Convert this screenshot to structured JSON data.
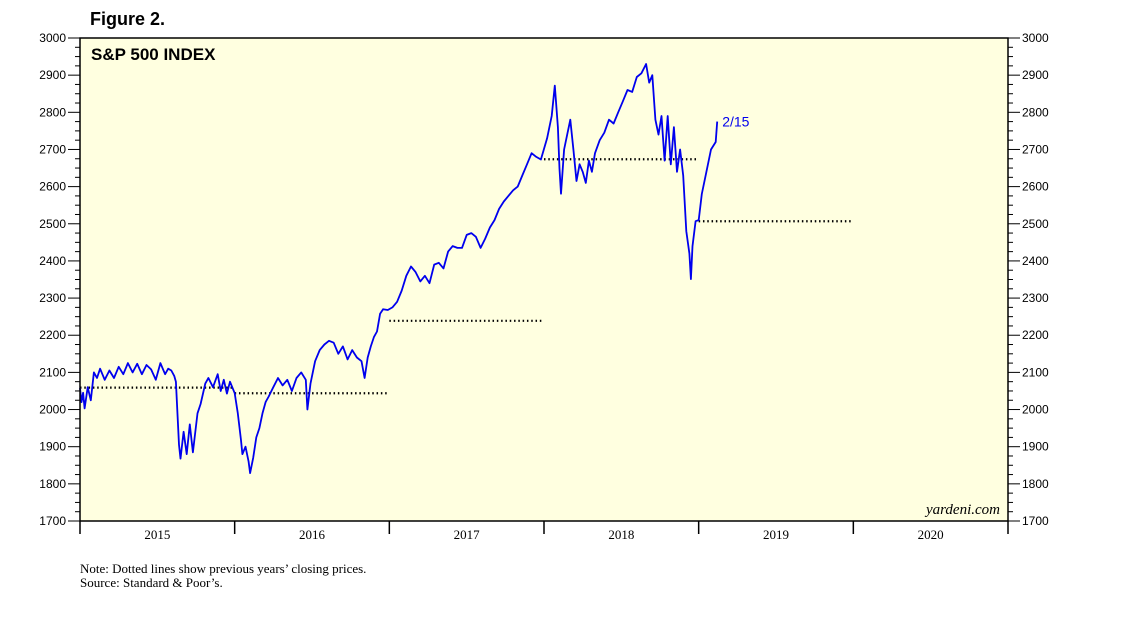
{
  "figure_title": "Figure 2.",
  "chart_data": {
    "type": "line",
    "title": "S&P 500 INDEX",
    "watermark": "yardeni.com",
    "end_label": "2/15",
    "ylim": [
      1700,
      3000
    ],
    "y_ticks": [
      1700,
      1800,
      1900,
      2000,
      2100,
      2200,
      2300,
      2400,
      2500,
      2600,
      2700,
      2800,
      2900,
      3000
    ],
    "xlim": [
      2015.0,
      2021.0
    ],
    "x_categories": [
      "2015",
      "2016",
      "2017",
      "2018",
      "2019",
      "2020"
    ],
    "colors": {
      "background": "#ffffe0",
      "line": "#0000ee",
      "reference": "#000000"
    },
    "series": [
      {
        "values": [
          [
            2015.0,
            2058
          ],
          [
            2015.01,
            2020
          ],
          [
            2015.02,
            2045
          ],
          [
            2015.03,
            2003
          ],
          [
            2015.05,
            2060
          ],
          [
            2015.07,
            2025
          ],
          [
            2015.09,
            2100
          ],
          [
            2015.11,
            2085
          ],
          [
            2015.13,
            2110
          ],
          [
            2015.16,
            2080
          ],
          [
            2015.19,
            2105
          ],
          [
            2015.22,
            2085
          ],
          [
            2015.25,
            2115
          ],
          [
            2015.28,
            2095
          ],
          [
            2015.31,
            2125
          ],
          [
            2015.34,
            2100
          ],
          [
            2015.37,
            2123
          ],
          [
            2015.4,
            2095
          ],
          [
            2015.43,
            2120
          ],
          [
            2015.46,
            2108
          ],
          [
            2015.49,
            2080
          ],
          [
            2015.52,
            2125
          ],
          [
            2015.55,
            2095
          ],
          [
            2015.57,
            2110
          ],
          [
            2015.59,
            2105
          ],
          [
            2015.61,
            2090
          ],
          [
            2015.62,
            2075
          ],
          [
            2015.64,
            1905
          ],
          [
            2015.65,
            1868
          ],
          [
            2015.67,
            1940
          ],
          [
            2015.69,
            1880
          ],
          [
            2015.71,
            1960
          ],
          [
            2015.73,
            1885
          ],
          [
            2015.76,
            1990
          ],
          [
            2015.78,
            2015
          ],
          [
            2015.81,
            2070
          ],
          [
            2015.83,
            2085
          ],
          [
            2015.86,
            2060
          ],
          [
            2015.89,
            2095
          ],
          [
            2015.91,
            2050
          ],
          [
            2015.93,
            2080
          ],
          [
            2015.95,
            2043
          ],
          [
            2015.97,
            2075
          ],
          [
            2016.0,
            2044
          ],
          [
            2016.02,
            1990
          ],
          [
            2016.04,
            1920
          ],
          [
            2016.05,
            1880
          ],
          [
            2016.07,
            1900
          ],
          [
            2016.09,
            1860
          ],
          [
            2016.1,
            1829
          ],
          [
            2016.12,
            1870
          ],
          [
            2016.14,
            1925
          ],
          [
            2016.16,
            1950
          ],
          [
            2016.18,
            1990
          ],
          [
            2016.2,
            2020
          ],
          [
            2016.22,
            2035
          ],
          [
            2016.25,
            2060
          ],
          [
            2016.28,
            2085
          ],
          [
            2016.31,
            2065
          ],
          [
            2016.34,
            2080
          ],
          [
            2016.37,
            2050
          ],
          [
            2016.4,
            2085
          ],
          [
            2016.43,
            2100
          ],
          [
            2016.46,
            2080
          ],
          [
            2016.47,
            2000
          ],
          [
            2016.49,
            2070
          ],
          [
            2016.52,
            2130
          ],
          [
            2016.55,
            2160
          ],
          [
            2016.58,
            2175
          ],
          [
            2016.61,
            2185
          ],
          [
            2016.64,
            2180
          ],
          [
            2016.67,
            2150
          ],
          [
            2016.7,
            2170
          ],
          [
            2016.73,
            2135
          ],
          [
            2016.76,
            2160
          ],
          [
            2016.79,
            2140
          ],
          [
            2016.82,
            2130
          ],
          [
            2016.84,
            2085
          ],
          [
            2016.86,
            2140
          ],
          [
            2016.88,
            2170
          ],
          [
            2016.9,
            2195
          ],
          [
            2016.92,
            2210
          ],
          [
            2016.94,
            2258
          ],
          [
            2016.96,
            2270
          ],
          [
            2016.99,
            2268
          ],
          [
            2017.02,
            2275
          ],
          [
            2017.05,
            2290
          ],
          [
            2017.08,
            2320
          ],
          [
            2017.11,
            2360
          ],
          [
            2017.14,
            2385
          ],
          [
            2017.17,
            2370
          ],
          [
            2017.2,
            2345
          ],
          [
            2017.23,
            2360
          ],
          [
            2017.26,
            2340
          ],
          [
            2017.29,
            2390
          ],
          [
            2017.32,
            2395
          ],
          [
            2017.35,
            2380
          ],
          [
            2017.38,
            2425
          ],
          [
            2017.41,
            2440
          ],
          [
            2017.44,
            2435
          ],
          [
            2017.47,
            2435
          ],
          [
            2017.5,
            2470
          ],
          [
            2017.53,
            2475
          ],
          [
            2017.56,
            2465
          ],
          [
            2017.59,
            2435
          ],
          [
            2017.62,
            2460
          ],
          [
            2017.65,
            2490
          ],
          [
            2017.68,
            2510
          ],
          [
            2017.71,
            2540
          ],
          [
            2017.74,
            2560
          ],
          [
            2017.77,
            2575
          ],
          [
            2017.8,
            2590
          ],
          [
            2017.83,
            2600
          ],
          [
            2017.86,
            2630
          ],
          [
            2017.89,
            2660
          ],
          [
            2017.92,
            2690
          ],
          [
            2017.95,
            2680
          ],
          [
            2017.98,
            2673
          ],
          [
            2018.02,
            2730
          ],
          [
            2018.05,
            2790
          ],
          [
            2018.07,
            2872
          ],
          [
            2018.09,
            2760
          ],
          [
            2018.1,
            2648
          ],
          [
            2018.11,
            2581
          ],
          [
            2018.13,
            2700
          ],
          [
            2018.15,
            2740
          ],
          [
            2018.17,
            2780
          ],
          [
            2018.19,
            2700
          ],
          [
            2018.21,
            2615
          ],
          [
            2018.23,
            2660
          ],
          [
            2018.25,
            2640
          ],
          [
            2018.27,
            2610
          ],
          [
            2018.29,
            2670
          ],
          [
            2018.31,
            2640
          ],
          [
            2018.33,
            2690
          ],
          [
            2018.36,
            2725
          ],
          [
            2018.39,
            2745
          ],
          [
            2018.42,
            2780
          ],
          [
            2018.45,
            2770
          ],
          [
            2018.48,
            2800
          ],
          [
            2018.51,
            2830
          ],
          [
            2018.54,
            2860
          ],
          [
            2018.57,
            2855
          ],
          [
            2018.6,
            2895
          ],
          [
            2018.63,
            2905
          ],
          [
            2018.66,
            2930
          ],
          [
            2018.68,
            2880
          ],
          [
            2018.7,
            2900
          ],
          [
            2018.72,
            2780
          ],
          [
            2018.74,
            2740
          ],
          [
            2018.76,
            2790
          ],
          [
            2018.78,
            2670
          ],
          [
            2018.8,
            2790
          ],
          [
            2018.82,
            2660
          ],
          [
            2018.84,
            2760
          ],
          [
            2018.86,
            2640
          ],
          [
            2018.88,
            2700
          ],
          [
            2018.9,
            2630
          ],
          [
            2018.92,
            2480
          ],
          [
            2018.94,
            2420
          ],
          [
            2018.95,
            2351
          ],
          [
            2018.96,
            2440
          ],
          [
            2018.98,
            2507
          ],
          [
            2019.0,
            2510
          ],
          [
            2019.02,
            2580
          ],
          [
            2019.05,
            2640
          ],
          [
            2019.08,
            2700
          ],
          [
            2019.11,
            2720
          ],
          [
            2019.12,
            2775
          ]
        ]
      }
    ],
    "reference_lines": [
      {
        "value": 2058.9,
        "x_start": 2015.0,
        "x_end": 2016.0
      },
      {
        "value": 2043.94,
        "x_start": 2016.0,
        "x_end": 2017.0
      },
      {
        "value": 2238.83,
        "x_start": 2017.0,
        "x_end": 2018.0
      },
      {
        "value": 2673.61,
        "x_start": 2018.0,
        "x_end": 2019.0
      },
      {
        "value": 2506.85,
        "x_start": 2019.0,
        "x_end": 2020.0
      }
    ]
  },
  "notes": {
    "line1": "Note: Dotted lines show previous years’ closing prices.",
    "line2": "Source: Standard & Poor’s."
  }
}
